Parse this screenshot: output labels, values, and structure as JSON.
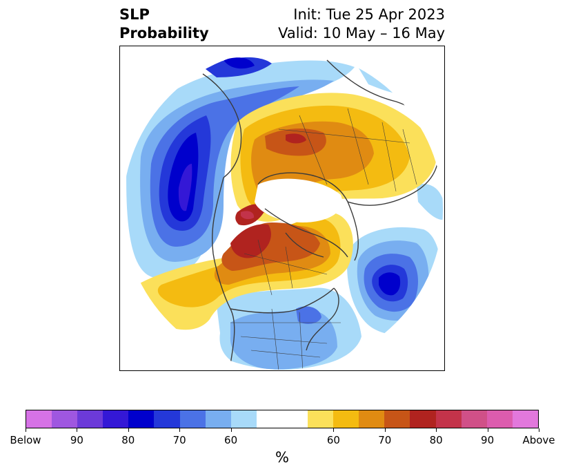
{
  "header": {
    "title_left_line1": "SLP",
    "title_left_line2": "Probability",
    "init": "Init: Tue 25 Apr 2023",
    "valid": "Valid: 10 May – 16 May"
  },
  "colorbar": {
    "units": "%",
    "colors": [
      "#d672e6",
      "#9f57e0",
      "#6c3ad9",
      "#3418d6",
      "#0000cc",
      "#2438d9",
      "#4b72e6",
      "#78aef0",
      "#a8daf9",
      "#ffffff",
      "#ffffff",
      "#fbe05a",
      "#f4bb11",
      "#e08b12",
      "#c75517",
      "#b0231f",
      "#c3334a",
      "#d05088",
      "#dc5cae",
      "#e278dc"
    ],
    "labels": [
      "Below",
      "90",
      "80",
      "70",
      "60",
      "60",
      "70",
      "80",
      "90",
      "Above"
    ]
  },
  "legend_colors": {
    "below_strong": "#0000cc",
    "below_medium": "#4b72e6",
    "below_light": "#a8daf9",
    "above_light": "#fbe05a",
    "above_medium": "#e08b12",
    "above_strong": "#b0231f",
    "above_extreme": "#c3334a"
  }
}
